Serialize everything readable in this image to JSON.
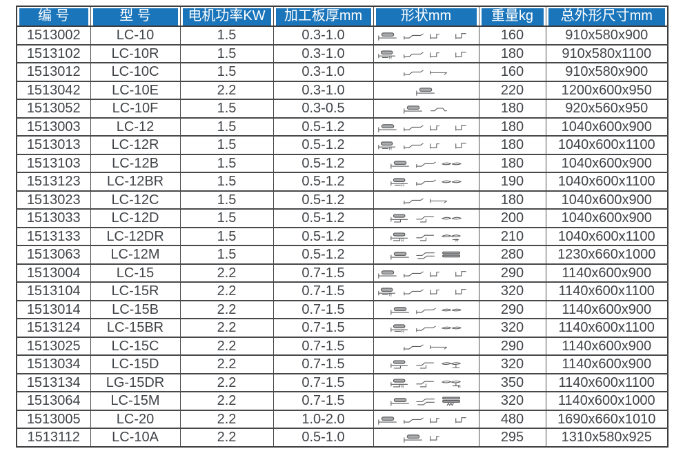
{
  "colors": {
    "header_bg": "#1b75bb",
    "header_text": "#ffffff",
    "cell_text": "#404347",
    "grid_line": "#47484a",
    "page_bg": "#ffffff"
  },
  "table": {
    "columns": [
      {
        "key": "code",
        "label": "编 号"
      },
      {
        "key": "model",
        "label": "型 号"
      },
      {
        "key": "power",
        "label": "电机功率KW"
      },
      {
        "key": "thickness",
        "label": "加工板厚mm"
      },
      {
        "key": "shape",
        "label": "形状mm"
      },
      {
        "key": "weight",
        "label": "重量kg"
      },
      {
        "key": "dimensions",
        "label": "总外形尺寸mm"
      }
    ],
    "rows": [
      {
        "code": "1513002",
        "model": "LC-10",
        "power": "1.5",
        "thickness": "0.3-1.0",
        "shapes": [
          "rolled-slat",
          "z-profile",
          "u-hook",
          "step-profile"
        ],
        "weight": "160",
        "dimensions": "910x580x900"
      },
      {
        "code": "1513102",
        "model": "LC-10R",
        "power": "1.5",
        "thickness": "0.3-1.0",
        "shapes": [
          "rolled-slat-r",
          "z-profile",
          "u-hook",
          "step-profile"
        ],
        "weight": "180",
        "dimensions": "910x580x1100"
      },
      {
        "code": "1513012",
        "model": "LC-10C",
        "power": "1.5",
        "thickness": "0.3-1.0",
        "shapes": [
          "z-profile",
          "flat-bar"
        ],
        "weight": "160",
        "dimensions": "910x580x900"
      },
      {
        "code": "1513042",
        "model": "LC-10E",
        "power": "2.2",
        "thickness": "0.3-1.0",
        "shapes": [
          "rolled-slat"
        ],
        "weight": "220",
        "dimensions": "1200x600x950"
      },
      {
        "code": "1513052",
        "model": "LC-10F",
        "power": "1.5",
        "thickness": "0.3-0.5",
        "shapes": [
          "rolled-slat",
          "angle-slat"
        ],
        "weight": "180",
        "dimensions": "920x560x950"
      },
      {
        "code": "1513003",
        "model": "LC-12",
        "power": "1.5",
        "thickness": "0.5-1.2",
        "shapes": [
          "rolled-slat",
          "z-profile",
          "u-hook",
          "step-profile"
        ],
        "weight": "180",
        "dimensions": "1040x600x900"
      },
      {
        "code": "1513013",
        "model": "LC-12R",
        "power": "1.5",
        "thickness": "0.5-1.2",
        "shapes": [
          "rolled-slat-r",
          "z-profile",
          "u-hook",
          "step-profile"
        ],
        "weight": "180",
        "dimensions": "1040x600x1100"
      },
      {
        "code": "1513103",
        "model": "LC-12B",
        "power": "1.5",
        "thickness": "0.5-1.2",
        "shapes": [
          "rolled-slat",
          "z-profile",
          "curve-pair"
        ],
        "weight": "180",
        "dimensions": "1040x600x900"
      },
      {
        "code": "1513123",
        "model": "LC-12BR",
        "power": "1.5",
        "thickness": "0.5-1.2",
        "shapes": [
          "rolled-slat-r",
          "z-profile",
          "curve-pair"
        ],
        "weight": "190",
        "dimensions": "1040x600x1100"
      },
      {
        "code": "1513023",
        "model": "LC-12C",
        "power": "1.5",
        "thickness": "0.5-1.2",
        "shapes": [
          "z-profile",
          "flat-bar"
        ],
        "weight": "180",
        "dimensions": "1040x600x900"
      },
      {
        "code": "1513033",
        "model": "LC-12D",
        "power": "1.5",
        "thickness": "0.5-1.2",
        "shapes": [
          "rolled-slat-step",
          "z-profile-step",
          "curve-pair"
        ],
        "weight": "200",
        "dimensions": "1040x600x900"
      },
      {
        "code": "1513133",
        "model": "LC-12DR",
        "power": "1.5",
        "thickness": "0.5-1.2",
        "shapes": [
          "rolled-slat-step-r",
          "z-profile-step",
          "curve-pair-r"
        ],
        "weight": "210",
        "dimensions": "1040x600x1100"
      },
      {
        "code": "1513063",
        "model": "LC-12M",
        "power": "1.5",
        "thickness": "0.5-1.2",
        "shapes": [
          "rolled-slat",
          "z-double",
          "layer-stack"
        ],
        "weight": "280",
        "dimensions": "1230x660x1000"
      },
      {
        "code": "1513004",
        "model": "LC-15",
        "power": "2.2",
        "thickness": "0.7-1.5",
        "shapes": [
          "rolled-slat",
          "z-profile",
          "u-hook",
          "step-profile"
        ],
        "weight": "290",
        "dimensions": "1140x600x900"
      },
      {
        "code": "1513104",
        "model": "LC-15R",
        "power": "2.2",
        "thickness": "0.7-1.5",
        "shapes": [
          "rolled-slat-r",
          "z-profile",
          "u-hook",
          "step-profile"
        ],
        "weight": "320",
        "dimensions": "1140x600x1100"
      },
      {
        "code": "1513014",
        "model": "LC-15B",
        "power": "2.2",
        "thickness": "0.7-1.5",
        "shapes": [
          "rolled-slat",
          "z-profile",
          "curve-pair"
        ],
        "weight": "290",
        "dimensions": "1140x600x900"
      },
      {
        "code": "1513124",
        "model": "LC-15BR",
        "power": "2.2",
        "thickness": "0.7-1.5",
        "shapes": [
          "rolled-slat-r",
          "z-profile",
          "curve-pair"
        ],
        "weight": "320",
        "dimensions": "1140x600x1100"
      },
      {
        "code": "1513025",
        "model": "LC-15C",
        "power": "2.2",
        "thickness": "0.7-1.5",
        "shapes": [
          "z-profile",
          "flat-bar"
        ],
        "weight": "290",
        "dimensions": "1140x600x900"
      },
      {
        "code": "1513034",
        "model": "LC-15D",
        "power": "2.2",
        "thickness": "0.7-1.5",
        "shapes": [
          "rolled-slat-step",
          "z-profile-step",
          "curve-pair-step"
        ],
        "weight": "320",
        "dimensions": "1140x600x900"
      },
      {
        "code": "1513134",
        "model": "LG-15DR",
        "power": "2.2",
        "thickness": "0.7-1.5",
        "shapes": [
          "rolled-slat-step-r",
          "z-profile-step",
          "curve-pair-step-r"
        ],
        "weight": "350",
        "dimensions": "1140x600x1100"
      },
      {
        "code": "1513064",
        "model": "LC-15M",
        "power": "2.2",
        "thickness": "0.7-1.5",
        "shapes": [
          "rolled-slat",
          "z-double",
          "layer-stack-zigzag"
        ],
        "weight": "320",
        "dimensions": "1140x600x1000"
      },
      {
        "code": "1513005",
        "model": "LC-20",
        "power": "2.2",
        "thickness": "1.0-2.0",
        "shapes": [
          "rolled-slat",
          "z-profile",
          "u-hook",
          "step-profile"
        ],
        "weight": "480",
        "dimensions": "1690x660x1010"
      },
      {
        "code": "1513112",
        "model": "LC-10A",
        "power": "2.2",
        "thickness": "0.5-1.0",
        "shapes": [
          "rolled-slat",
          "u-hook"
        ],
        "weight": "295",
        "dimensions": "1310x580x925"
      }
    ]
  }
}
